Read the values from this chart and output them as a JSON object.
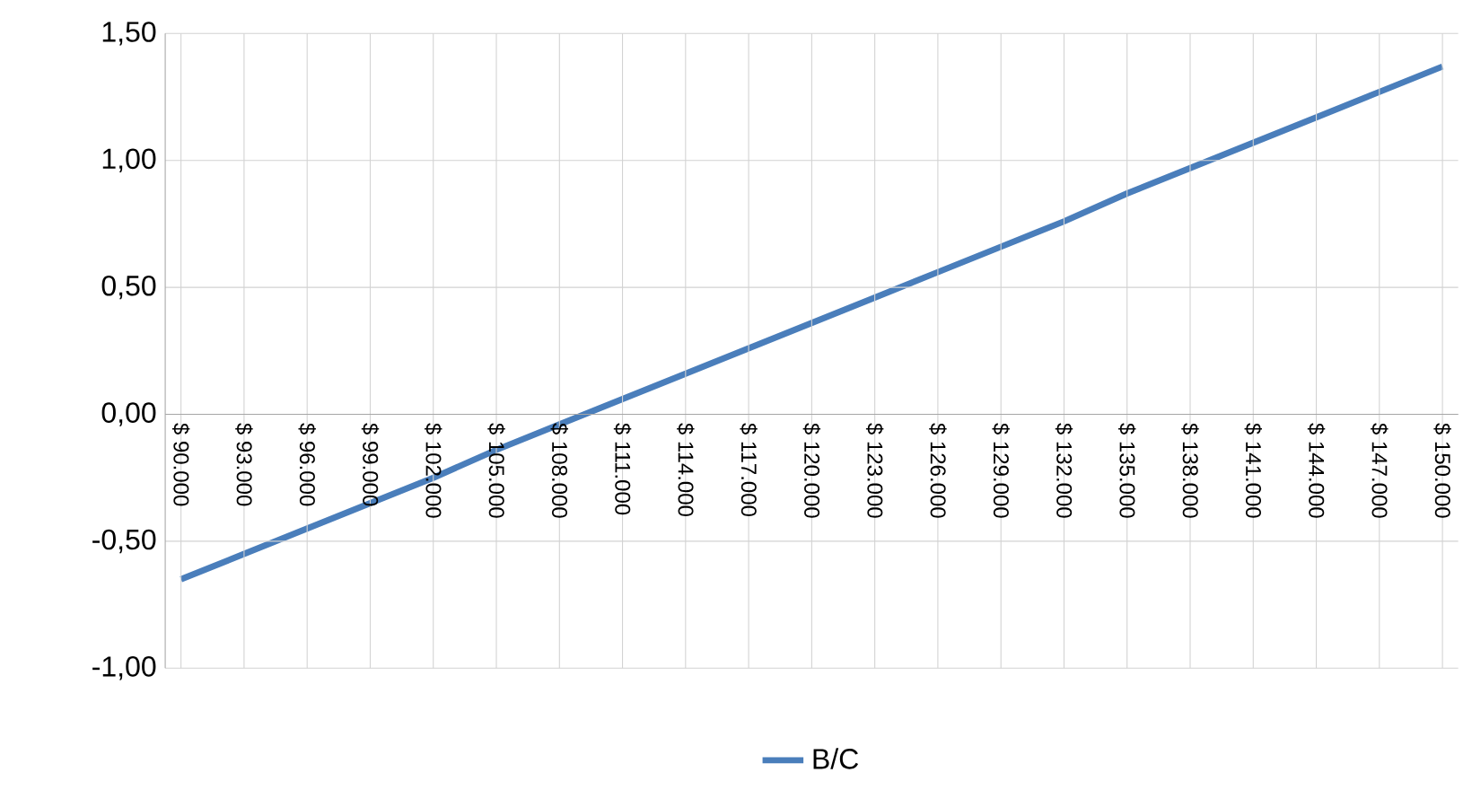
{
  "chart_data": {
    "type": "line",
    "categories": [
      "$ 90.000",
      "$ 93.000",
      "$ 96.000",
      "$ 99.000",
      "$ 102.000",
      "$ 105.000",
      "$ 108.000",
      "$ 111.000",
      "$ 114.000",
      "$ 117.000",
      "$ 120.000",
      "$ 123.000",
      "$ 126.000",
      "$ 129.000",
      "$ 132.000",
      "$ 135.000",
      "$ 138.000",
      "$ 141.000",
      "$ 144.000",
      "$ 147.000",
      "$ 150.000"
    ],
    "series": [
      {
        "name": "B/C",
        "color": "#4a7ebb",
        "values": [
          -0.65,
          -0.55,
          -0.45,
          -0.35,
          -0.25,
          -0.14,
          -0.04,
          0.06,
          0.16,
          0.26,
          0.36,
          0.46,
          0.56,
          0.66,
          0.76,
          0.87,
          0.97,
          1.07,
          1.17,
          1.27,
          1.37
        ]
      }
    ],
    "ylim": [
      -1,
      1.5
    ],
    "yticks": [
      {
        "value": -1,
        "label": "-1,00"
      },
      {
        "value": -0.5,
        "label": "-0,50"
      },
      {
        "value": 0,
        "label": "0,00"
      },
      {
        "value": 0.5,
        "label": "0,50"
      },
      {
        "value": 1,
        "label": "1,00"
      },
      {
        "value": 1.5,
        "label": "1,50"
      }
    ],
    "grid": true,
    "legend": "bottom",
    "marker": "none",
    "line_style": "solid"
  }
}
